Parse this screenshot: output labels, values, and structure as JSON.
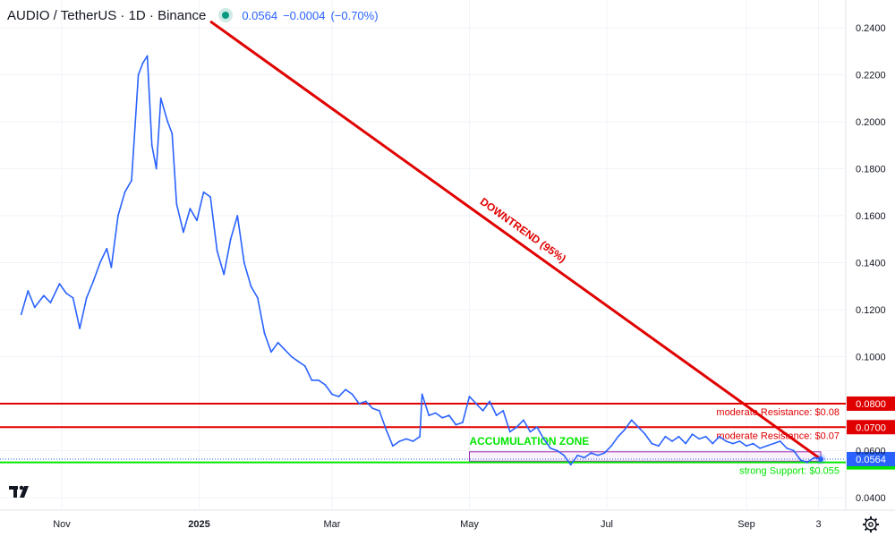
{
  "header": {
    "symbol": "AUDIO / TetherUS · 1D · Binance",
    "price": "0.0564",
    "change": "−0.0004",
    "change_pct": "(−0.70%)"
  },
  "colors": {
    "price_line": "#2962ff",
    "resistance": "#e00000",
    "support": "#00e600",
    "axis_text": "#131722",
    "grid": "#f0f3fa",
    "zone": "#9c27b0"
  },
  "icons": [
    "tradingview-logo-icon",
    "settings-gear-icon"
  ],
  "chart_data": {
    "type": "line",
    "title": "AUDIO / TetherUS · 1D · Binance",
    "xlabel": "",
    "ylabel": "",
    "ylim": [
      0.033,
      0.247
    ],
    "y_ticks": [
      "0.2400",
      "0.2200",
      "0.2000",
      "0.1800",
      "0.1600",
      "0.1400",
      "0.1200",
      "0.1000",
      "0.0800",
      "0.0700",
      "0.0600",
      "0.0550",
      "0.0400"
    ],
    "y_tick_values": [
      0.24,
      0.22,
      0.2,
      0.18,
      0.16,
      0.14,
      0.12,
      0.1,
      0.08,
      0.07,
      0.06,
      0.055,
      0.04
    ],
    "x_ticks": [
      {
        "label": "Nov",
        "date": "2024-11-01"
      },
      {
        "label": "2025",
        "date": "2025-01-01"
      },
      {
        "label": "Mar",
        "date": "2025-03-01"
      },
      {
        "label": "May",
        "date": "2025-05-01"
      },
      {
        "label": "Jul",
        "date": "2025-07-01"
      },
      {
        "label": "Sep",
        "date": "2025-09-01"
      },
      {
        "label": "3",
        "date": "2025-10-03"
      }
    ],
    "x_range": [
      "2024-10-14",
      "2025-10-09"
    ],
    "grid": true,
    "series": [
      {
        "points": [
          [
            "2024-10-14",
            0.118
          ],
          [
            "2024-10-17",
            0.128
          ],
          [
            "2024-10-20",
            0.121
          ],
          [
            "2024-10-24",
            0.126
          ],
          [
            "2024-10-27",
            0.123
          ],
          [
            "2024-10-31",
            0.131
          ],
          [
            "2024-11-03",
            0.127
          ],
          [
            "2024-11-06",
            0.125
          ],
          [
            "2024-11-09",
            0.112
          ],
          [
            "2024-11-12",
            0.125
          ],
          [
            "2024-11-15",
            0.132
          ],
          [
            "2024-11-18",
            0.14
          ],
          [
            "2024-11-21",
            0.146
          ],
          [
            "2024-11-23",
            0.138
          ],
          [
            "2024-11-26",
            0.16
          ],
          [
            "2024-11-29",
            0.17
          ],
          [
            "2024-12-02",
            0.175
          ],
          [
            "2024-12-05",
            0.22
          ],
          [
            "2024-12-07",
            0.225
          ],
          [
            "2024-12-09",
            0.228
          ],
          [
            "2024-12-11",
            0.19
          ],
          [
            "2024-12-13",
            0.18
          ],
          [
            "2024-12-15",
            0.21
          ],
          [
            "2024-12-18",
            0.2
          ],
          [
            "2024-12-20",
            0.195
          ],
          [
            "2024-12-22",
            0.165
          ],
          [
            "2024-12-25",
            0.153
          ],
          [
            "2024-12-28",
            0.163
          ],
          [
            "2024-12-31",
            0.158
          ],
          [
            "2025-01-03",
            0.17
          ],
          [
            "2025-01-06",
            0.168
          ],
          [
            "2025-01-09",
            0.145
          ],
          [
            "2025-01-12",
            0.135
          ],
          [
            "2025-01-15",
            0.15
          ],
          [
            "2025-01-18",
            0.16
          ],
          [
            "2025-01-21",
            0.14
          ],
          [
            "2025-01-24",
            0.13
          ],
          [
            "2025-01-27",
            0.125
          ],
          [
            "2025-01-30",
            0.11
          ],
          [
            "2025-02-02",
            0.102
          ],
          [
            "2025-02-05",
            0.106
          ],
          [
            "2025-02-08",
            0.103
          ],
          [
            "2025-02-11",
            0.1
          ],
          [
            "2025-02-14",
            0.098
          ],
          [
            "2025-02-17",
            0.096
          ],
          [
            "2025-02-20",
            0.09
          ],
          [
            "2025-02-23",
            0.09
          ],
          [
            "2025-02-26",
            0.088
          ],
          [
            "2025-03-01",
            0.084
          ],
          [
            "2025-03-04",
            0.083
          ],
          [
            "2025-03-07",
            0.086
          ],
          [
            "2025-03-10",
            0.084
          ],
          [
            "2025-03-13",
            0.08
          ],
          [
            "2025-03-16",
            0.081
          ],
          [
            "2025-03-19",
            0.078
          ],
          [
            "2025-03-22",
            0.077
          ],
          [
            "2025-03-25",
            0.069
          ],
          [
            "2025-03-28",
            0.062
          ],
          [
            "2025-03-31",
            0.064
          ],
          [
            "2025-04-03",
            0.065
          ],
          [
            "2025-04-06",
            0.064
          ],
          [
            "2025-04-09",
            0.066
          ],
          [
            "2025-04-10",
            0.084
          ],
          [
            "2025-04-13",
            0.075
          ],
          [
            "2025-04-16",
            0.076
          ],
          [
            "2025-04-19",
            0.074
          ],
          [
            "2025-04-22",
            0.075
          ],
          [
            "2025-04-25",
            0.071
          ],
          [
            "2025-04-28",
            0.072
          ],
          [
            "2025-05-01",
            0.083
          ],
          [
            "2025-05-04",
            0.08
          ],
          [
            "2025-05-07",
            0.077
          ],
          [
            "2025-05-10",
            0.081
          ],
          [
            "2025-05-13",
            0.075
          ],
          [
            "2025-05-16",
            0.077
          ],
          [
            "2025-05-19",
            0.068
          ],
          [
            "2025-05-22",
            0.07
          ],
          [
            "2025-05-25",
            0.073
          ],
          [
            "2025-05-28",
            0.068
          ],
          [
            "2025-05-31",
            0.07
          ],
          [
            "2025-06-03",
            0.065
          ],
          [
            "2025-06-06",
            0.061
          ],
          [
            "2025-06-09",
            0.06
          ],
          [
            "2025-06-12",
            0.058
          ],
          [
            "2025-06-15",
            0.054
          ],
          [
            "2025-06-18",
            0.058
          ],
          [
            "2025-06-21",
            0.057
          ],
          [
            "2025-06-24",
            0.059
          ],
          [
            "2025-06-27",
            0.058
          ],
          [
            "2025-06-30",
            0.059
          ],
          [
            "2025-07-03",
            0.062
          ],
          [
            "2025-07-06",
            0.066
          ],
          [
            "2025-07-09",
            0.069
          ],
          [
            "2025-07-12",
            0.073
          ],
          [
            "2025-07-15",
            0.07
          ],
          [
            "2025-07-18",
            0.067
          ],
          [
            "2025-07-21",
            0.063
          ],
          [
            "2025-07-24",
            0.062
          ],
          [
            "2025-07-27",
            0.066
          ],
          [
            "2025-07-30",
            0.064
          ],
          [
            "2025-08-02",
            0.066
          ],
          [
            "2025-08-05",
            0.063
          ],
          [
            "2025-08-08",
            0.067
          ],
          [
            "2025-08-11",
            0.065
          ],
          [
            "2025-08-14",
            0.066
          ],
          [
            "2025-08-17",
            0.063
          ],
          [
            "2025-08-20",
            0.066
          ],
          [
            "2025-08-23",
            0.064
          ],
          [
            "2025-08-26",
            0.063
          ],
          [
            "2025-08-29",
            0.064
          ],
          [
            "2025-09-01",
            0.062
          ],
          [
            "2025-09-04",
            0.063
          ],
          [
            "2025-09-07",
            0.061
          ],
          [
            "2025-09-10",
            0.062
          ],
          [
            "2025-09-13",
            0.063
          ],
          [
            "2025-09-16",
            0.064
          ],
          [
            "2025-09-19",
            0.061
          ],
          [
            "2025-09-22",
            0.06
          ],
          [
            "2025-09-25",
            0.056
          ],
          [
            "2025-09-28",
            0.055
          ],
          [
            "2025-10-01",
            0.057
          ],
          [
            "2025-10-04",
            0.0564
          ]
        ]
      }
    ],
    "horizontal_levels": [
      {
        "value": 0.08,
        "label": "moderate Resistance: $0.08",
        "axis_label": "0.0800",
        "color": "#e00000"
      },
      {
        "value": 0.07,
        "label": "moderate Resistance: $0.07",
        "axis_label": "0.0700",
        "color": "#e00000"
      },
      {
        "value": 0.055,
        "label": "strong Support: $0.055",
        "axis_label": "0.0550",
        "color": "#00e600"
      }
    ],
    "current_price": {
      "value": 0.0564,
      "label": "0.0564"
    },
    "trendline": {
      "label": "DOWNTREND (95%)",
      "start": {
        "date": "2025-01-06",
        "value": 0.2427
      },
      "end": {
        "date": "2025-10-04",
        "value": 0.0564
      },
      "color": "#e00000"
    },
    "zone": {
      "label": "ACCUMULATION ZONE",
      "start_date": "2025-05-01",
      "end_date": "2025-10-04",
      "low": 0.0555,
      "high": 0.0595
    }
  }
}
